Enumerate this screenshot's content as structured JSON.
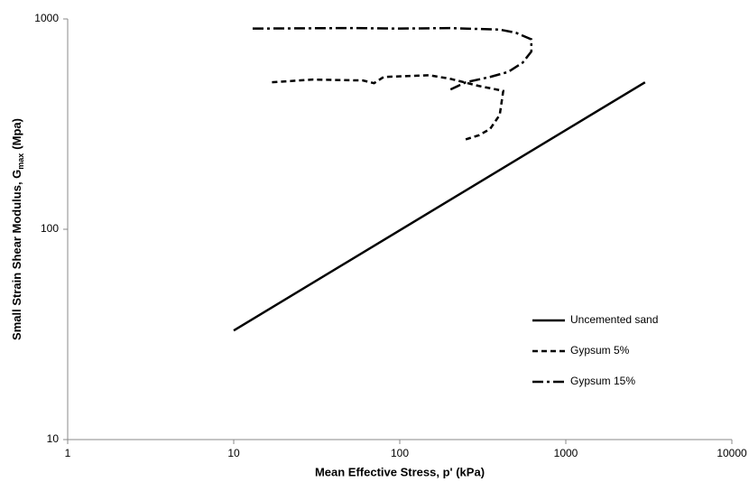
{
  "chart_data": {
    "type": "line",
    "xlabel": "Mean Effective Stress, p' (kPa)",
    "ylabel": {
      "text": "Small Strain Shear Modulus, G",
      "subscript": "max",
      "unit": "(Mpa)"
    },
    "xlim": [
      1,
      10000
    ],
    "ylim": [
      10,
      1000
    ],
    "xticks": [
      1,
      10,
      100,
      1000,
      10000
    ],
    "yticks": [
      10,
      100,
      1000
    ],
    "xscale": "log",
    "yscale": "log",
    "grid": false,
    "series": [
      {
        "name": "Uncemented sand",
        "color": "#000000",
        "dash": "solid",
        "x": [
          10,
          3000
        ],
        "values": [
          33,
          500
        ]
      },
      {
        "name": "Gypsum 5%",
        "color": "#000000",
        "dash": "dashed",
        "x": [
          17,
          30,
          60,
          70,
          80,
          150,
          200,
          300,
          420,
          400,
          350,
          300,
          240
        ],
        "values": [
          500,
          515,
          510,
          495,
          530,
          540,
          520,
          480,
          455,
          350,
          300,
          280,
          265
        ]
      },
      {
        "name": "Gypsum 15%",
        "color": "#000000",
        "dash": "dashdot",
        "x": [
          13,
          50,
          100,
          200,
          400,
          500,
          620,
          620,
          550,
          450,
          350,
          250,
          200
        ],
        "values": [
          900,
          905,
          900,
          905,
          890,
          860,
          800,
          700,
          620,
          560,
          530,
          500,
          460
        ]
      }
    ],
    "legend": "right"
  }
}
